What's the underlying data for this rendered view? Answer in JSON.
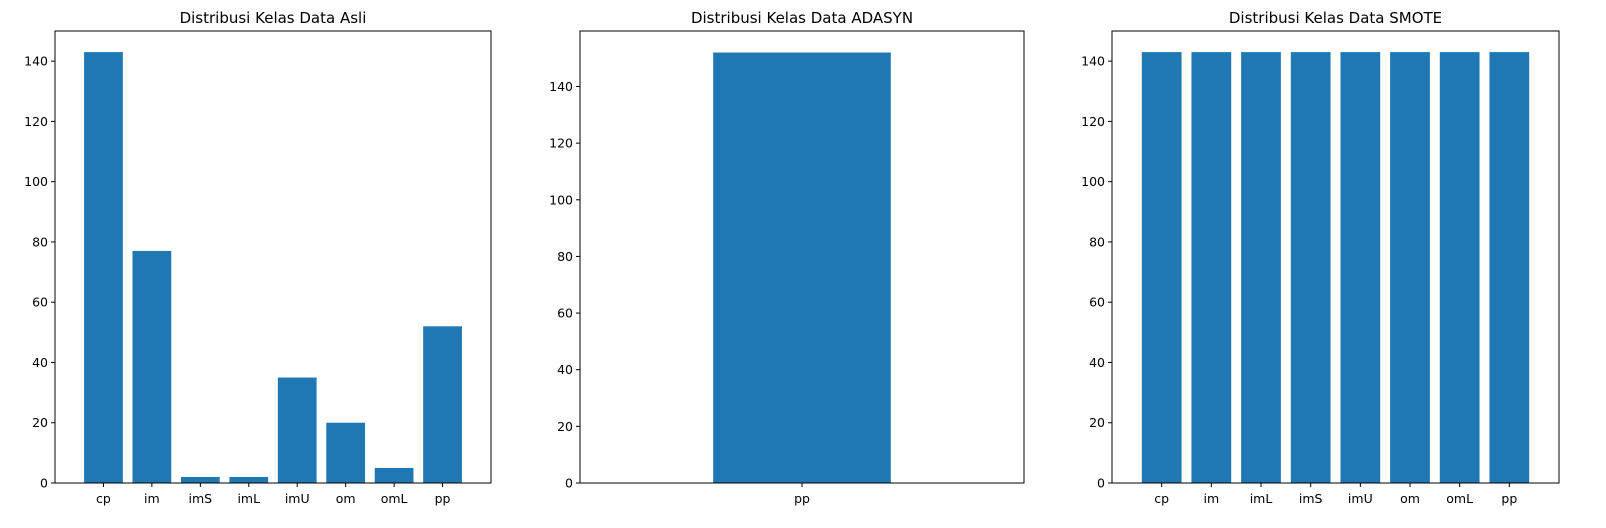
{
  "chart_data": [
    {
      "type": "bar",
      "title": "Distribusi Kelas Data Asli",
      "categories": [
        "cp",
        "im",
        "imS",
        "imL",
        "imU",
        "om",
        "omL",
        "pp"
      ],
      "values": [
        143,
        77,
        2,
        2,
        35,
        20,
        5,
        52
      ],
      "ylim": [
        0,
        150
      ],
      "yticks": [
        0,
        20,
        40,
        60,
        80,
        100,
        120,
        140
      ],
      "color": "#1f77b4",
      "grid": false
    },
    {
      "type": "bar",
      "title": "Distribusi Kelas Data ADASYN",
      "categories": [
        "pp"
      ],
      "values": [
        152
      ],
      "ylim": [
        0,
        159.6
      ],
      "yticks": [
        0,
        20,
        40,
        60,
        80,
        100,
        120,
        140
      ],
      "color": "#1f77b4",
      "grid": false
    },
    {
      "type": "bar",
      "title": "Distribusi Kelas Data SMOTE",
      "categories": [
        "cp",
        "im",
        "imL",
        "imS",
        "imU",
        "om",
        "omL",
        "pp"
      ],
      "values": [
        143,
        143,
        143,
        143,
        143,
        143,
        143,
        143
      ],
      "ylim": [
        0,
        150
      ],
      "yticks": [
        0,
        20,
        40,
        60,
        80,
        100,
        120,
        140
      ],
      "color": "#1f77b4",
      "grid": false
    }
  ]
}
